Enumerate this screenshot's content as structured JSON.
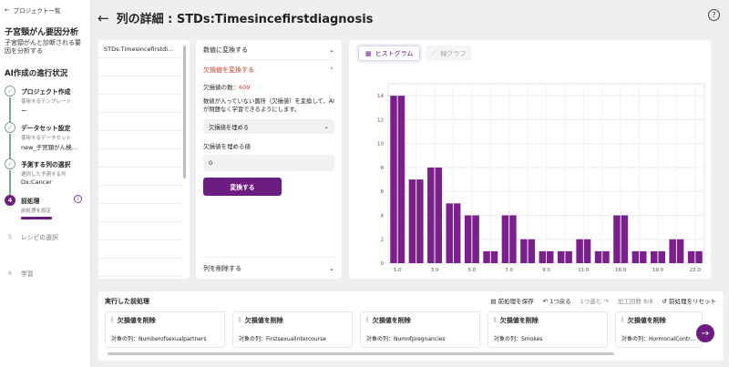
{
  "sidebar": {
    "back_label": "プロジェクト一覧",
    "project_title": "子宮頸がん要因分析",
    "project_desc": "子宮頸がんと診断される要因を分析する",
    "progress_title": "AI作成の進行状況",
    "steps": [
      {
        "num": "✓",
        "name": "プロジェクト作成",
        "sub": "使用するテンプレート",
        "val": "ー"
      },
      {
        "num": "✓",
        "name": "データセット設定",
        "sub": "使用するデータセット",
        "val": "new_子宮頸がん検..."
      },
      {
        "num": "✓",
        "name": "予測する列の選択",
        "sub": "選択した予測する列",
        "val": "Dx:Cancer"
      },
      {
        "num": "4",
        "name": "前処理",
        "sub": "前処理を設定",
        "val": ""
      },
      {
        "num": "5",
        "name": "レシピの選択",
        "sub": "",
        "val": ""
      },
      {
        "num": "6",
        "name": "学習",
        "sub": "",
        "val": ""
      }
    ]
  },
  "header": {
    "title": "列の詳細 : STDs:Timesincefirstdiagnosis"
  },
  "columns": {
    "items": [
      "STDs:Timesincefirstdi...",
      "",
      "",
      "",
      "",
      "",
      "",
      "",
      "",
      "",
      "",
      "",
      ""
    ]
  },
  "ops": {
    "numeric_label": "数値に変換する",
    "missing_label": "欠損値を変換する",
    "missing_count_label": "欠損値の数：",
    "missing_count": "609",
    "description": "数値が入っていない箇所（欠損値）を変換して、AIが問題なく学習できるようにします。",
    "select_value": "欠損値を埋める",
    "fill_label": "欠損値を埋める値",
    "fill_value": "0",
    "convert_button": "変換する",
    "delete_label": "列を削除する"
  },
  "chart_tabs": {
    "hist": "ヒストグラム",
    "line": "線グラフ"
  },
  "chart_data": {
    "type": "bar",
    "categories": [
      "1.0",
      "2.0",
      "3.0",
      "4.0",
      "5.0",
      "6.0",
      "7.0",
      "8.0",
      "9.0",
      "10.0",
      "11.0",
      "12.0",
      "16.0",
      "18.0",
      "19.0",
      "21.0",
      "22.0"
    ],
    "values": [
      14,
      7,
      8,
      5,
      4,
      1,
      4,
      2,
      1,
      1,
      2,
      1,
      4,
      1,
      1,
      2,
      1
    ],
    "x_ticks": [
      "1.0",
      "3.0",
      "5.0",
      "7.0",
      "9.0",
      "11.0",
      "16.0",
      "19.0",
      "22.0"
    ],
    "y_ticks": [
      0,
      2,
      4,
      6,
      8,
      10,
      12,
      14
    ],
    "ylim": [
      0,
      15
    ],
    "bar_color": "#7a1f8c",
    "grid": true
  },
  "processing": {
    "title": "実行した前処理",
    "save_label": "前処理を保存",
    "undo_label": "1つ戻る",
    "redo_label": "1つ進む",
    "count_label": "加工回数",
    "count_value": "8/8",
    "reset_label": "前処理をリセット",
    "cards": [
      {
        "title": "欠損値を削除",
        "target": "対象の列：Numberofsexualpartners"
      },
      {
        "title": "欠損値を削除",
        "target": "対象の列：Firstsexualintercourse"
      },
      {
        "title": "欠損値を削除",
        "target": "対象の列：Numofpregnancies"
      },
      {
        "title": "欠損値を削除",
        "target": "対象の列：Smokes"
      },
      {
        "title": "欠損値を削除",
        "target": "対象の列：HormonalContra...pl"
      }
    ]
  },
  "colors": {
    "accent": "#6c1d81",
    "done": "#7ba68f",
    "alert": "#c0392b"
  }
}
